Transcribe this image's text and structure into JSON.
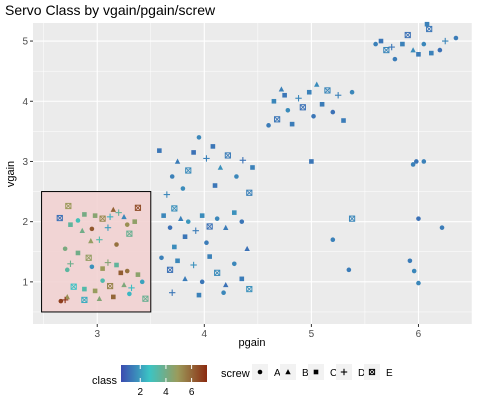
{
  "chart_data": {
    "type": "scatter",
    "title": "Servo Class by vgain/pgain/screw",
    "xlabel": "pgain",
    "ylabel": "vgain",
    "xlim": [
      2.4,
      6.5
    ],
    "ylim": [
      0.3,
      5.3
    ],
    "x_ticks": [
      "3",
      "4",
      "5",
      "6"
    ],
    "y_ticks": [
      "1",
      "2",
      "3",
      "4",
      "5"
    ],
    "grid": true,
    "highlight_region": {
      "x": [
        2.48,
        3.5
      ],
      "y": [
        0.5,
        2.5
      ],
      "color": "#f2d2d2"
    },
    "color_legend": {
      "title": "class",
      "ticks": [
        "2",
        "4",
        "6"
      ],
      "gradient": [
        "#3b4bb0",
        "#3bc4c4",
        "#9b9b5b",
        "#8b2a10"
      ],
      "range": [
        0.5,
        7.2
      ]
    },
    "shape_legend": {
      "title": "screw",
      "items": [
        {
          "label": "A",
          "shape": "circle"
        },
        {
          "label": "B",
          "shape": "triangle"
        },
        {
          "label": "C",
          "shape": "square"
        },
        {
          "label": "D",
          "shape": "plus"
        },
        {
          "label": "E",
          "shape": "boxcross"
        }
      ]
    },
    "points": [
      {
        "x": 2.65,
        "y": 2.06,
        "c": 1.2,
        "s": "E"
      },
      {
        "x": 2.75,
        "y": 1.95,
        "c": 3.6,
        "s": "C"
      },
      {
        "x": 2.73,
        "y": 2.26,
        "c": 5.0,
        "s": "E"
      },
      {
        "x": 2.82,
        "y": 2.02,
        "c": 3.0,
        "s": "A"
      },
      {
        "x": 2.86,
        "y": 1.85,
        "c": 4.0,
        "s": "B"
      },
      {
        "x": 2.95,
        "y": 1.88,
        "c": 6.3,
        "s": "A"
      },
      {
        "x": 2.98,
        "y": 2.1,
        "c": 4.5,
        "s": "C"
      },
      {
        "x": 3.05,
        "y": 2.05,
        "c": 5.3,
        "s": "E"
      },
      {
        "x": 3.1,
        "y": 1.9,
        "c": 2.0,
        "s": "D"
      },
      {
        "x": 3.15,
        "y": 2.2,
        "c": 6.1,
        "s": "B"
      },
      {
        "x": 3.2,
        "y": 2.15,
        "c": 3.6,
        "s": "D"
      },
      {
        "x": 3.28,
        "y": 1.95,
        "c": 5.2,
        "s": "A"
      },
      {
        "x": 3.3,
        "y": 1.8,
        "c": 3.8,
        "s": "E"
      },
      {
        "x": 3.35,
        "y": 2.0,
        "c": 4.7,
        "s": "C"
      },
      {
        "x": 3.38,
        "y": 2.23,
        "c": 6.5,
        "s": "E"
      },
      {
        "x": 3.25,
        "y": 2.08,
        "c": 1.6,
        "s": "B"
      },
      {
        "x": 3.02,
        "y": 1.7,
        "c": 3.3,
        "s": "D"
      },
      {
        "x": 2.88,
        "y": 2.12,
        "c": 4.1,
        "s": "C"
      },
      {
        "x": 3.12,
        "y": 2.08,
        "c": 2.4,
        "s": "D"
      },
      {
        "x": 3.18,
        "y": 1.62,
        "c": 5.8,
        "s": "A"
      },
      {
        "x": 2.94,
        "y": 1.68,
        "c": 4.8,
        "s": "B"
      },
      {
        "x": 2.7,
        "y": 1.55,
        "c": 4.2,
        "s": "A"
      },
      {
        "x": 2.75,
        "y": 1.3,
        "c": 3.9,
        "s": "D"
      },
      {
        "x": 2.72,
        "y": 1.2,
        "c": 3.5,
        "s": "A"
      },
      {
        "x": 2.82,
        "y": 1.48,
        "c": 4.0,
        "s": "C"
      },
      {
        "x": 2.92,
        "y": 1.4,
        "c": 4.8,
        "s": "E"
      },
      {
        "x": 2.95,
        "y": 1.25,
        "c": 1.8,
        "s": "A"
      },
      {
        "x": 3.05,
        "y": 1.22,
        "c": 5.0,
        "s": "C"
      },
      {
        "x": 3.1,
        "y": 1.32,
        "c": 4.4,
        "s": "D"
      },
      {
        "x": 3.18,
        "y": 1.28,
        "c": 3.6,
        "s": "C"
      },
      {
        "x": 3.22,
        "y": 1.15,
        "c": 6.2,
        "s": "C"
      },
      {
        "x": 3.28,
        "y": 1.18,
        "c": 5.8,
        "s": "A"
      },
      {
        "x": 3.38,
        "y": 1.12,
        "c": 4.6,
        "s": "C"
      },
      {
        "x": 3.32,
        "y": 0.9,
        "c": 2.6,
        "s": "D"
      },
      {
        "x": 3.42,
        "y": 1.0,
        "c": 2.1,
        "s": "A"
      },
      {
        "x": 3.25,
        "y": 0.95,
        "c": 4.3,
        "s": "B"
      },
      {
        "x": 3.12,
        "y": 0.93,
        "c": 5.4,
        "s": "E"
      },
      {
        "x": 3.05,
        "y": 1.02,
        "c": 3.2,
        "s": "A"
      },
      {
        "x": 2.98,
        "y": 0.85,
        "c": 4.9,
        "s": "C"
      },
      {
        "x": 2.88,
        "y": 0.88,
        "c": 3.3,
        "s": "C"
      },
      {
        "x": 2.78,
        "y": 0.92,
        "c": 2.7,
        "s": "E"
      },
      {
        "x": 2.72,
        "y": 0.75,
        "c": 5.2,
        "s": "B"
      },
      {
        "x": 2.66,
        "y": 0.68,
        "c": 6.8,
        "s": "A"
      },
      {
        "x": 2.7,
        "y": 0.7,
        "c": 7.0,
        "s": "D"
      },
      {
        "x": 2.88,
        "y": 0.7,
        "c": 2.3,
        "s": "E"
      },
      {
        "x": 3.02,
        "y": 0.72,
        "c": 4.4,
        "s": "B"
      },
      {
        "x": 3.15,
        "y": 0.75,
        "c": 6.0,
        "s": "C"
      },
      {
        "x": 3.3,
        "y": 0.8,
        "c": 2.5,
        "s": "A"
      },
      {
        "x": 3.45,
        "y": 0.72,
        "c": 3.8,
        "s": "E"
      },
      {
        "x": 3.62,
        "y": 2.1,
        "c": 1.6,
        "s": "C"
      },
      {
        "x": 3.68,
        "y": 1.9,
        "c": 1.2,
        "s": "A"
      },
      {
        "x": 3.72,
        "y": 2.22,
        "c": 1.8,
        "s": "E"
      },
      {
        "x": 3.78,
        "y": 2.05,
        "c": 1.5,
        "s": "B"
      },
      {
        "x": 3.82,
        "y": 1.75,
        "c": 1.3,
        "s": "C"
      },
      {
        "x": 3.85,
        "y": 2.0,
        "c": 1.9,
        "s": "A"
      },
      {
        "x": 3.92,
        "y": 1.85,
        "c": 1.4,
        "s": "D"
      },
      {
        "x": 3.98,
        "y": 2.1,
        "c": 1.7,
        "s": "C"
      },
      {
        "x": 4.05,
        "y": 1.92,
        "c": 1.2,
        "s": "E"
      },
      {
        "x": 4.12,
        "y": 2.05,
        "c": 1.6,
        "s": "A"
      },
      {
        "x": 4.2,
        "y": 1.9,
        "c": 1.4,
        "s": "B"
      },
      {
        "x": 4.28,
        "y": 2.15,
        "c": 1.8,
        "s": "C"
      },
      {
        "x": 4.35,
        "y": 2.0,
        "c": 1.3,
        "s": "A"
      },
      {
        "x": 4.42,
        "y": 2.48,
        "c": 1.5,
        "s": "E"
      },
      {
        "x": 3.65,
        "y": 2.45,
        "c": 1.6,
        "s": "D"
      },
      {
        "x": 3.58,
        "y": 3.18,
        "c": 1.3,
        "s": "C"
      },
      {
        "x": 3.7,
        "y": 2.75,
        "c": 1.5,
        "s": "A"
      },
      {
        "x": 3.75,
        "y": 3.0,
        "c": 1.4,
        "s": "B"
      },
      {
        "x": 3.85,
        "y": 2.85,
        "c": 1.7,
        "s": "E"
      },
      {
        "x": 3.9,
        "y": 3.15,
        "c": 1.2,
        "s": "C"
      },
      {
        "x": 3.95,
        "y": 3.4,
        "c": 1.6,
        "s": "A"
      },
      {
        "x": 4.02,
        "y": 3.05,
        "c": 1.5,
        "s": "D"
      },
      {
        "x": 4.08,
        "y": 3.25,
        "c": 1.3,
        "s": "C"
      },
      {
        "x": 4.15,
        "y": 2.9,
        "c": 1.8,
        "s": "B"
      },
      {
        "x": 4.22,
        "y": 3.1,
        "c": 1.4,
        "s": "E"
      },
      {
        "x": 4.3,
        "y": 2.75,
        "c": 1.6,
        "s": "A"
      },
      {
        "x": 4.36,
        "y": 3.02,
        "c": 1.2,
        "s": "D"
      },
      {
        "x": 4.45,
        "y": 2.9,
        "c": 1.5,
        "s": "C"
      },
      {
        "x": 3.8,
        "y": 2.55,
        "c": 1.7,
        "s": "A"
      },
      {
        "x": 4.1,
        "y": 2.6,
        "c": 1.3,
        "s": "C"
      },
      {
        "x": 3.6,
        "y": 1.4,
        "c": 1.5,
        "s": "A"
      },
      {
        "x": 3.68,
        "y": 1.2,
        "c": 1.2,
        "s": "E"
      },
      {
        "x": 3.75,
        "y": 1.35,
        "c": 1.6,
        "s": "C"
      },
      {
        "x": 3.82,
        "y": 1.05,
        "c": 1.4,
        "s": "B"
      },
      {
        "x": 3.9,
        "y": 1.28,
        "c": 1.8,
        "s": "D"
      },
      {
        "x": 3.98,
        "y": 1.0,
        "c": 1.3,
        "s": "A"
      },
      {
        "x": 4.05,
        "y": 1.42,
        "c": 1.5,
        "s": "C"
      },
      {
        "x": 4.12,
        "y": 1.15,
        "c": 1.7,
        "s": "E"
      },
      {
        "x": 4.2,
        "y": 0.95,
        "c": 1.2,
        "s": "B"
      },
      {
        "x": 4.28,
        "y": 1.3,
        "c": 1.6,
        "s": "A"
      },
      {
        "x": 4.35,
        "y": 1.05,
        "c": 1.4,
        "s": "C"
      },
      {
        "x": 4.42,
        "y": 0.88,
        "c": 1.8,
        "s": "E"
      },
      {
        "x": 3.7,
        "y": 0.82,
        "c": 1.3,
        "s": "D"
      },
      {
        "x": 3.95,
        "y": 0.78,
        "c": 1.5,
        "s": "C"
      },
      {
        "x": 4.18,
        "y": 0.82,
        "c": 1.6,
        "s": "A"
      },
      {
        "x": 4.4,
        "y": 1.55,
        "c": 1.2,
        "s": "B"
      },
      {
        "x": 3.72,
        "y": 1.58,
        "c": 1.7,
        "s": "C"
      },
      {
        "x": 4.02,
        "y": 1.65,
        "c": 1.4,
        "s": "A"
      },
      {
        "x": 5.0,
        "y": 3.0,
        "c": 1.3,
        "s": "C"
      },
      {
        "x": 5.2,
        "y": 1.7,
        "c": 1.5,
        "s": "A"
      },
      {
        "x": 5.35,
        "y": 1.2,
        "c": 1.4,
        "s": "A"
      },
      {
        "x": 5.38,
        "y": 2.05,
        "c": 1.6,
        "s": "E"
      },
      {
        "x": 4.6,
        "y": 3.6,
        "c": 1.4,
        "s": "A"
      },
      {
        "x": 4.65,
        "y": 4.0,
        "c": 1.6,
        "s": "C"
      },
      {
        "x": 4.68,
        "y": 3.7,
        "c": 1.3,
        "s": "E"
      },
      {
        "x": 4.72,
        "y": 4.2,
        "c": 1.5,
        "s": "B"
      },
      {
        "x": 4.78,
        "y": 3.85,
        "c": 1.7,
        "s": "A"
      },
      {
        "x": 4.82,
        "y": 3.62,
        "c": 1.4,
        "s": "C"
      },
      {
        "x": 4.88,
        "y": 4.05,
        "c": 1.6,
        "s": "D"
      },
      {
        "x": 4.92,
        "y": 3.9,
        "c": 1.2,
        "s": "E"
      },
      {
        "x": 4.98,
        "y": 4.15,
        "c": 1.5,
        "s": "C"
      },
      {
        "x": 5.02,
        "y": 3.75,
        "c": 1.3,
        "s": "A"
      },
      {
        "x": 5.05,
        "y": 4.28,
        "c": 1.7,
        "s": "B"
      },
      {
        "x": 5.1,
        "y": 3.95,
        "c": 1.4,
        "s": "C"
      },
      {
        "x": 5.15,
        "y": 4.18,
        "c": 1.6,
        "s": "E"
      },
      {
        "x": 5.2,
        "y": 3.82,
        "c": 1.2,
        "s": "A"
      },
      {
        "x": 5.25,
        "y": 4.1,
        "c": 1.5,
        "s": "D"
      },
      {
        "x": 5.3,
        "y": 3.68,
        "c": 1.4,
        "s": "C"
      },
      {
        "x": 5.38,
        "y": 4.15,
        "c": 1.6,
        "s": "A"
      },
      {
        "x": 4.75,
        "y": 4.1,
        "c": 1.3,
        "s": "C"
      },
      {
        "x": 5.6,
        "y": 4.95,
        "c": 1.5,
        "s": "A"
      },
      {
        "x": 5.65,
        "y": 5.0,
        "c": 1.3,
        "s": "C"
      },
      {
        "x": 5.7,
        "y": 4.85,
        "c": 1.6,
        "s": "E"
      },
      {
        "x": 5.78,
        "y": 4.7,
        "c": 1.4,
        "s": "A"
      },
      {
        "x": 5.85,
        "y": 4.95,
        "c": 1.5,
        "s": "C"
      },
      {
        "x": 5.9,
        "y": 5.1,
        "c": 1.2,
        "s": "E"
      },
      {
        "x": 5.95,
        "y": 4.85,
        "c": 1.7,
        "s": "B"
      },
      {
        "x": 6.0,
        "y": 4.78,
        "c": 1.4,
        "s": "C"
      },
      {
        "x": 6.05,
        "y": 4.95,
        "c": 1.6,
        "s": "A"
      },
      {
        "x": 6.1,
        "y": 5.2,
        "c": 1.3,
        "s": "E"
      },
      {
        "x": 6.12,
        "y": 4.8,
        "c": 1.5,
        "s": "C"
      },
      {
        "x": 6.2,
        "y": 4.85,
        "c": 1.2,
        "s": "A"
      },
      {
        "x": 6.25,
        "y": 5.0,
        "c": 1.6,
        "s": "D"
      },
      {
        "x": 6.35,
        "y": 5.05,
        "c": 1.4,
        "s": "A"
      },
      {
        "x": 6.08,
        "y": 5.28,
        "c": 1.5,
        "s": "C"
      },
      {
        "x": 5.75,
        "y": 4.9,
        "c": 1.3,
        "s": "D"
      },
      {
        "x": 5.92,
        "y": 1.35,
        "c": 1.4,
        "s": "A"
      },
      {
        "x": 5.95,
        "y": 2.95,
        "c": 1.5,
        "s": "A"
      },
      {
        "x": 5.98,
        "y": 3.0,
        "c": 1.3,
        "s": "A"
      },
      {
        "x": 5.96,
        "y": 1.18,
        "c": 1.6,
        "s": "A"
      },
      {
        "x": 6.0,
        "y": 2.05,
        "c": 1.2,
        "s": "A"
      },
      {
        "x": 6.05,
        "y": 3.0,
        "c": 1.5,
        "s": "A"
      },
      {
        "x": 6.22,
        "y": 1.9,
        "c": 1.4,
        "s": "A"
      },
      {
        "x": 6.0,
        "y": 0.98,
        "c": 1.6,
        "s": "A"
      }
    ]
  }
}
